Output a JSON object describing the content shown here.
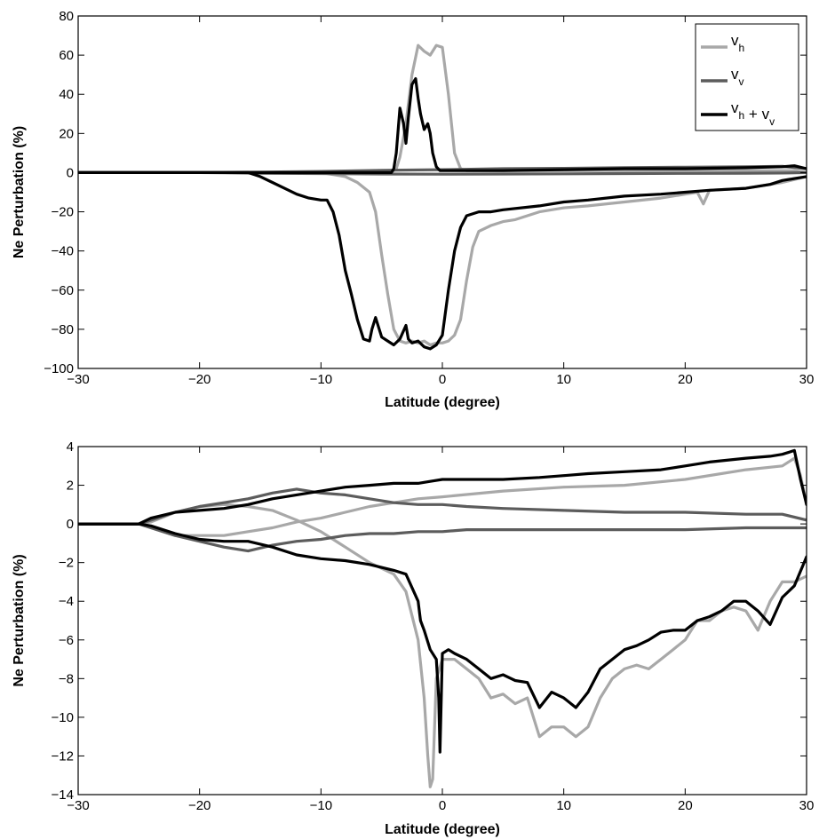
{
  "chart_data": [
    {
      "type": "line",
      "title": "",
      "xlabel": "Latitude (degree)",
      "ylabel": "Ne Perturbation (%)",
      "xlim": [
        -30,
        30
      ],
      "ylim": [
        -100,
        80
      ],
      "xticks": [
        -30,
        -20,
        -10,
        0,
        10,
        20,
        30
      ],
      "yticks": [
        -100,
        -80,
        -60,
        -40,
        -20,
        0,
        20,
        40,
        60,
        80
      ],
      "xtick_labels": [
        "−30",
        "−20",
        "−10",
        "0",
        "10",
        "20",
        "30"
      ],
      "ytick_labels": [
        "−100",
        "−80",
        "−60",
        "−40",
        "−20",
        "0",
        "20",
        "40",
        "60",
        "80"
      ],
      "grid": false,
      "legend": {
        "location": "top-right",
        "entries": [
          {
            "base": "v",
            "sub": "h",
            "color": "#a8a8a8"
          },
          {
            "base": "v",
            "sub": "v",
            "color": "#5c5c5c"
          },
          {
            "base": "v",
            "sub": "h",
            "plus": " + ",
            "base2": "v",
            "sub2": "v",
            "color": "#000000"
          }
        ]
      },
      "series": [
        {
          "color": "#a8a8a8",
          "segments": [
            {
              "x": [
                -30,
                -20,
                -15,
                -10,
                -8,
                -7,
                -6,
                -5.5,
                -5,
                -4.5,
                -4,
                -3.5,
                -3,
                -2.5,
                -2,
                -1.5,
                -1,
                -0.5,
                0,
                0.5,
                1,
                1.5,
                2,
                2.5,
                3,
                4,
                5,
                6,
                8,
                10,
                12,
                15,
                18,
                20,
                21,
                21.5,
                22,
                25,
                28,
                30
              ],
              "y": [
                0,
                0,
                0,
                0,
                -2,
                -5,
                -10,
                -20,
                -42,
                -62,
                -80,
                -86,
                -87,
                -86,
                -87,
                -86,
                -88,
                -87,
                -87,
                -86,
                -83,
                -75,
                -55,
                -38,
                -30,
                -27,
                -25,
                -24,
                -20,
                -18,
                -17,
                -15,
                -13,
                -11,
                -10,
                -16,
                -9,
                -8,
                -5,
                -2
              ]
            },
            {
              "x": [
                -30,
                -5,
                -4.5,
                -4,
                -3.8,
                -3.5,
                -3,
                -2.5,
                -2,
                -1.5,
                -1,
                -0.5,
                0,
                0.5,
                1,
                1.5,
                2,
                5,
                10,
                15,
                20,
                25,
                28,
                29,
                30
              ],
              "y": [
                0,
                0,
                0.5,
                1,
                2,
                8,
                25,
                50,
                65,
                62,
                60,
                65,
                64,
                40,
                10,
                2,
                1,
                1,
                1,
                1,
                1,
                1,
                1,
                1,
                0
              ]
            }
          ]
        },
        {
          "color": "#5c5c5c",
          "segments": [
            {
              "x": [
                -30,
                -20,
                -15,
                -10,
                -5,
                0,
                5,
                10,
                15,
                20,
                25,
                28,
                30
              ],
              "y": [
                0,
                0,
                0.3,
                0.6,
                1.2,
                1.5,
                2,
                2.2,
                2.5,
                2.8,
                3,
                3.2,
                2
              ]
            },
            {
              "x": [
                -30,
                -20,
                -15,
                -10,
                -5,
                0,
                5,
                10,
                15,
                20,
                25,
                28,
                30
              ],
              "y": [
                0,
                0,
                -0.3,
                -0.5,
                -0.7,
                -0.8,
                -0.7,
                -0.6,
                -0.5,
                -0.4,
                -0.3,
                -0.2,
                0
              ]
            }
          ]
        },
        {
          "color": "#000000",
          "segments": [
            {
              "x": [
                -30,
                -20,
                -16,
                -15,
                -14,
                -13,
                -12,
                -11,
                -10,
                -9.5,
                -9,
                -8.5,
                -8,
                -7.5,
                -7,
                -6.5,
                -6,
                -5.8,
                -5.5,
                -5,
                -4.5,
                -4,
                -3.5,
                -3,
                -2.8,
                -2.5,
                -2,
                -1.5,
                -1,
                -0.5,
                0,
                0.5,
                1,
                1.5,
                2,
                3,
                4,
                5,
                8,
                10,
                12,
                15,
                18,
                20,
                22,
                25,
                27,
                28,
                29,
                30
              ],
              "y": [
                0,
                0,
                0,
                -2,
                -5,
                -8,
                -11,
                -13,
                -14,
                -14,
                -20,
                -32,
                -50,
                -62,
                -75,
                -85,
                -86,
                -80,
                -74,
                -84,
                -86,
                -88,
                -85,
                -78,
                -85,
                -87,
                -86,
                -89,
                -90,
                -88,
                -83,
                -60,
                -40,
                -28,
                -22,
                -20,
                -20,
                -19,
                -17,
                -15,
                -14,
                -12,
                -11,
                -10,
                -9,
                -8,
                -6,
                -4,
                -3,
                -2
              ]
            },
            {
              "x": [
                -30,
                -4.2,
                -4,
                -3.8,
                -3.5,
                -3.2,
                -3,
                -2.8,
                -2.5,
                -2.2,
                -2,
                -1.8,
                -1.5,
                -1.2,
                -1,
                -0.8,
                -0.5,
                -0.2,
                0,
                5,
                10,
                15,
                20,
                25,
                28,
                29,
                30
              ],
              "y": [
                0,
                0,
                2,
                10,
                33,
                25,
                15,
                28,
                45,
                48,
                38,
                30,
                22,
                25,
                20,
                10,
                3,
                1,
                1,
                1,
                1.5,
                2,
                2,
                2.5,
                3,
                3.5,
                2
              ]
            }
          ]
        }
      ]
    },
    {
      "type": "line",
      "title": "",
      "xlabel": "Latitude (degree)",
      "ylabel": "Ne Perturbation (%)",
      "xlim": [
        -30,
        30
      ],
      "ylim": [
        -14,
        4
      ],
      "xticks": [
        -30,
        -20,
        -10,
        0,
        10,
        20,
        30
      ],
      "yticks": [
        -14,
        -12,
        -10,
        -8,
        -6,
        -4,
        -2,
        0,
        2,
        4
      ],
      "xtick_labels": [
        "−30",
        "−20",
        "−10",
        "0",
        "10",
        "20",
        "30"
      ],
      "ytick_labels": [
        "−14",
        "−12",
        "−10",
        "−8",
        "−6",
        "−4",
        "−2",
        "0",
        "2",
        "4"
      ],
      "grid": false,
      "series": [
        {
          "color": "#a8a8a8",
          "segments": [
            {
              "x": [
                -30,
                -25,
                -24,
                -22,
                -20,
                -18,
                -16,
                -14,
                -12,
                -10,
                -8,
                -6,
                -4,
                -3,
                -2,
                -1.5,
                -1.2,
                -1,
                -0.8,
                -0.5,
                0,
                0.5,
                1,
                2,
                3,
                4,
                5,
                6,
                7,
                8,
                9,
                10,
                11,
                12,
                13,
                14,
                15,
                16,
                17,
                18,
                19,
                20,
                21,
                22,
                23,
                24,
                25,
                26,
                27,
                28,
                29,
                30
              ],
              "y": [
                0,
                0,
                0.1,
                0.6,
                0.9,
                1,
                0.9,
                0.7,
                0.2,
                -0.4,
                -1.2,
                -2,
                -2.6,
                -3.5,
                -6,
                -9,
                -12,
                -13.6,
                -13.2,
                -8,
                -7,
                -7,
                -7,
                -7.5,
                -8,
                -9,
                -8.8,
                -9.3,
                -9,
                -11,
                -10.5,
                -10.5,
                -11,
                -10.5,
                -9,
                -8,
                -7.5,
                -7.3,
                -7.5,
                -7,
                -6.5,
                -6,
                -5,
                -5,
                -4.5,
                -4.3,
                -4.5,
                -5.5,
                -4,
                -3,
                -3,
                -2.7
              ]
            },
            {
              "x": [
                -30,
                -25,
                -22,
                -20,
                -18,
                -16,
                -14,
                -12,
                -10,
                -8,
                -6,
                -4,
                -2,
                0,
                5,
                10,
                15,
                20,
                25,
                28,
                29,
                29.5,
                30
              ],
              "y": [
                0,
                0,
                -0.6,
                -0.6,
                -0.6,
                -0.4,
                -0.2,
                0.1,
                0.3,
                0.6,
                0.9,
                1.1,
                1.3,
                1.4,
                1.7,
                1.9,
                2,
                2.3,
                2.8,
                3,
                3.4,
                2.5,
                1
              ]
            }
          ]
        },
        {
          "color": "#5c5c5c",
          "segments": [
            {
              "x": [
                -30,
                -25,
                -24,
                -22,
                -20,
                -18,
                -16,
                -14,
                -12,
                -10,
                -8,
                -6,
                -4,
                -2,
                0,
                2,
                5,
                10,
                15,
                20,
                25,
                28,
                30
              ],
              "y": [
                0,
                0,
                0.2,
                0.6,
                0.9,
                1.1,
                1.3,
                1.6,
                1.8,
                1.6,
                1.5,
                1.3,
                1.1,
                1,
                1,
                0.9,
                0.8,
                0.7,
                0.6,
                0.6,
                0.5,
                0.5,
                0.2
              ]
            },
            {
              "x": [
                -30,
                -25,
                -24,
                -22,
                -20,
                -18,
                -16,
                -14,
                -12,
                -10,
                -8,
                -6,
                -4,
                -2,
                0,
                2,
                5,
                10,
                15,
                20,
                25,
                28,
                30
              ],
              "y": [
                0,
                0,
                -0.2,
                -0.6,
                -0.9,
                -1.2,
                -1.4,
                -1.1,
                -0.9,
                -0.8,
                -0.6,
                -0.5,
                -0.5,
                -0.4,
                -0.4,
                -0.3,
                -0.3,
                -0.3,
                -0.3,
                -0.3,
                -0.2,
                -0.2,
                -0.2
              ]
            }
          ]
        },
        {
          "color": "#000000",
          "segments": [
            {
              "x": [
                -30,
                -25,
                -24,
                -22,
                -20,
                -18,
                -16,
                -14,
                -12,
                -10,
                -8,
                -6,
                -4,
                -3,
                -2,
                -1.8,
                -1.5,
                -1,
                -0.5,
                -0.3,
                -0.2,
                0,
                0.5,
                1,
                2,
                3,
                4,
                5,
                6,
                7,
                8,
                9,
                10,
                11,
                12,
                13,
                14,
                15,
                16,
                17,
                18,
                19,
                20,
                21,
                22,
                23,
                24,
                25,
                26,
                27,
                28,
                29,
                30
              ],
              "y": [
                0,
                0,
                -0.1,
                -0.5,
                -0.8,
                -0.9,
                -0.9,
                -1.2,
                -1.6,
                -1.8,
                -1.9,
                -2.1,
                -2.4,
                -2.6,
                -4,
                -5,
                -5.5,
                -6.5,
                -7,
                -9,
                -11.8,
                -6.7,
                -6.5,
                -6.7,
                -7,
                -7.5,
                -8,
                -7.8,
                -8.1,
                -8.2,
                -9.5,
                -8.7,
                -9,
                -9.5,
                -8.7,
                -7.5,
                -7,
                -6.5,
                -6.3,
                -6,
                -5.6,
                -5.5,
                -5.5,
                -5,
                -4.8,
                -4.5,
                -4,
                -4,
                -4.5,
                -5.2,
                -3.8,
                -3.2,
                -1.7
              ]
            },
            {
              "x": [
                -30,
                -25,
                -24,
                -22,
                -20,
                -18,
                -16,
                -14,
                -12,
                -10,
                -8,
                -6,
                -4,
                -2,
                -1,
                0,
                2,
                5,
                8,
                10,
                12,
                15,
                18,
                20,
                22,
                25,
                27,
                28,
                29,
                29.5,
                30
              ],
              "y": [
                0,
                0,
                0.3,
                0.6,
                0.7,
                0.8,
                1,
                1.3,
                1.5,
                1.7,
                1.9,
                2,
                2.1,
                2.1,
                2.2,
                2.3,
                2.3,
                2.3,
                2.4,
                2.5,
                2.6,
                2.7,
                2.8,
                3,
                3.2,
                3.4,
                3.5,
                3.6,
                3.8,
                2.3,
                1
              ]
            }
          ]
        }
      ]
    }
  ]
}
